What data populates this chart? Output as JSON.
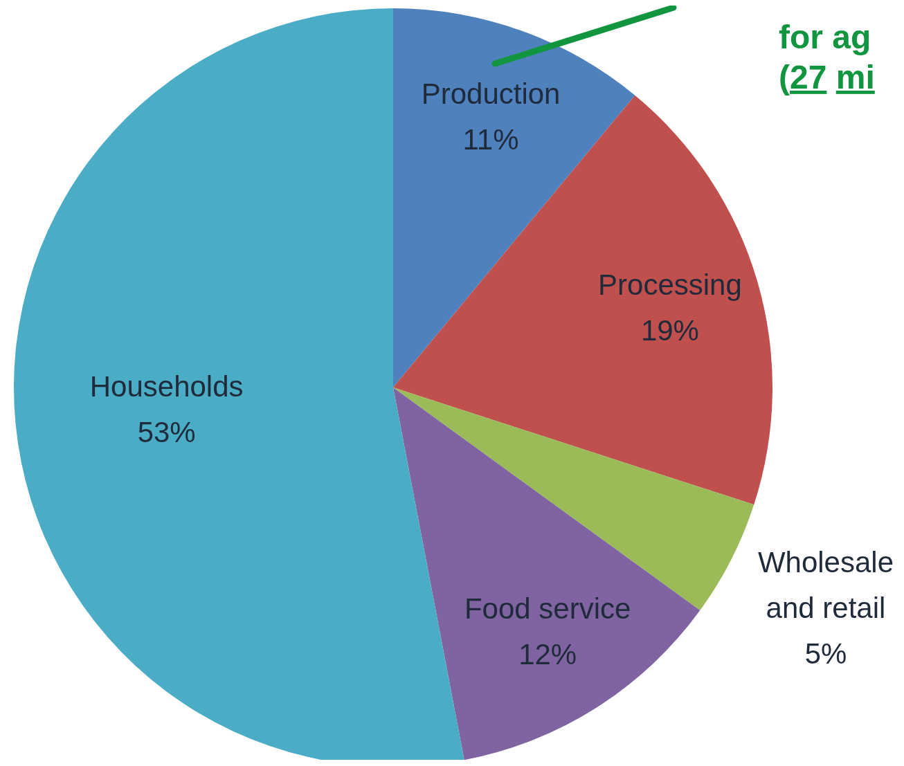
{
  "chart_data": {
    "type": "pie",
    "categories": [
      "Production",
      "Processing",
      "Wholesale and retail",
      "Food service",
      "Households"
    ],
    "values": [
      11,
      19,
      5,
      12,
      53
    ],
    "value_labels": [
      "11%",
      "19%",
      "5%",
      "12%",
      "53%"
    ],
    "colors": [
      "#4f81bd",
      "#c0504d",
      "#9bbb59",
      "#8064a2",
      "#4bacc6"
    ],
    "annotations": [
      "for ag\n(27 mi"
    ]
  }
}
